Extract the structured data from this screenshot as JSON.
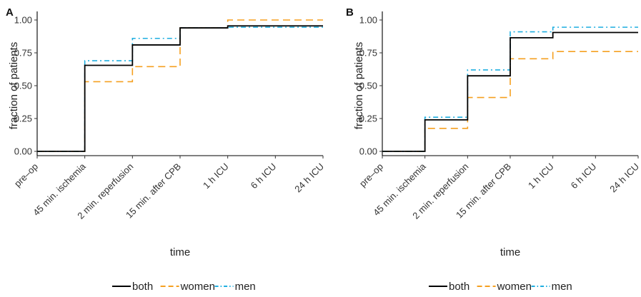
{
  "chart_data": [
    {
      "type": "line",
      "step": "post",
      "panel_label": "A",
      "title": "",
      "xlabel": "time",
      "ylabel": "fraction of patients",
      "categories": [
        "pre–op",
        "45 min. ischemia",
        "2 min. reperfusion",
        "15 min. after CPB",
        "1 h ICU",
        "6 h ICU",
        "24 h ICU"
      ],
      "yticks": [
        "0.00",
        "0.25",
        "0.50",
        "0.75",
        "1.00"
      ],
      "ylim": [
        0,
        1
      ],
      "grid": false,
      "legend_position": "bottom",
      "series": [
        {
          "name": "both",
          "color": "#000000",
          "dash": "solid",
          "values": [
            0.0,
            0.655,
            0.81,
            0.94,
            0.955,
            0.955,
            0.955
          ]
        },
        {
          "name": "women",
          "color": "#f5a020",
          "dash": "dashed",
          "values": [
            0.0,
            0.53,
            0.645,
            0.94,
            1.0,
            1.0,
            1.0
          ]
        },
        {
          "name": "men",
          "color": "#1eaee0",
          "dash": "dotdash",
          "values": [
            0.0,
            0.69,
            0.86,
            0.94,
            0.945,
            0.945,
            0.945
          ]
        }
      ]
    },
    {
      "type": "line",
      "step": "post",
      "panel_label": "B",
      "title": "",
      "xlabel": "time",
      "ylabel": "fraction of patients",
      "categories": [
        "pre–op",
        "45 min. ischemia",
        "2 min. reperfusion",
        "15 min. after CPB",
        "1 h ICU",
        "6 h ICU",
        "24 h ICU"
      ],
      "yticks": [
        "0.00",
        "0.25",
        "0.50",
        "0.75",
        "1.00"
      ],
      "ylim": [
        0,
        1
      ],
      "grid": false,
      "legend_position": "bottom",
      "series": [
        {
          "name": "both",
          "color": "#000000",
          "dash": "solid",
          "values": [
            0.0,
            0.24,
            0.575,
            0.865,
            0.905,
            0.905,
            0.905
          ]
        },
        {
          "name": "women",
          "color": "#f5a020",
          "dash": "dashed",
          "values": [
            0.0,
            0.175,
            0.41,
            0.705,
            0.76,
            0.76,
            0.76
          ]
        },
        {
          "name": "men",
          "color": "#1eaee0",
          "dash": "dotdash",
          "values": [
            0.0,
            0.26,
            0.62,
            0.91,
            0.945,
            0.945,
            0.945
          ]
        }
      ]
    }
  ]
}
